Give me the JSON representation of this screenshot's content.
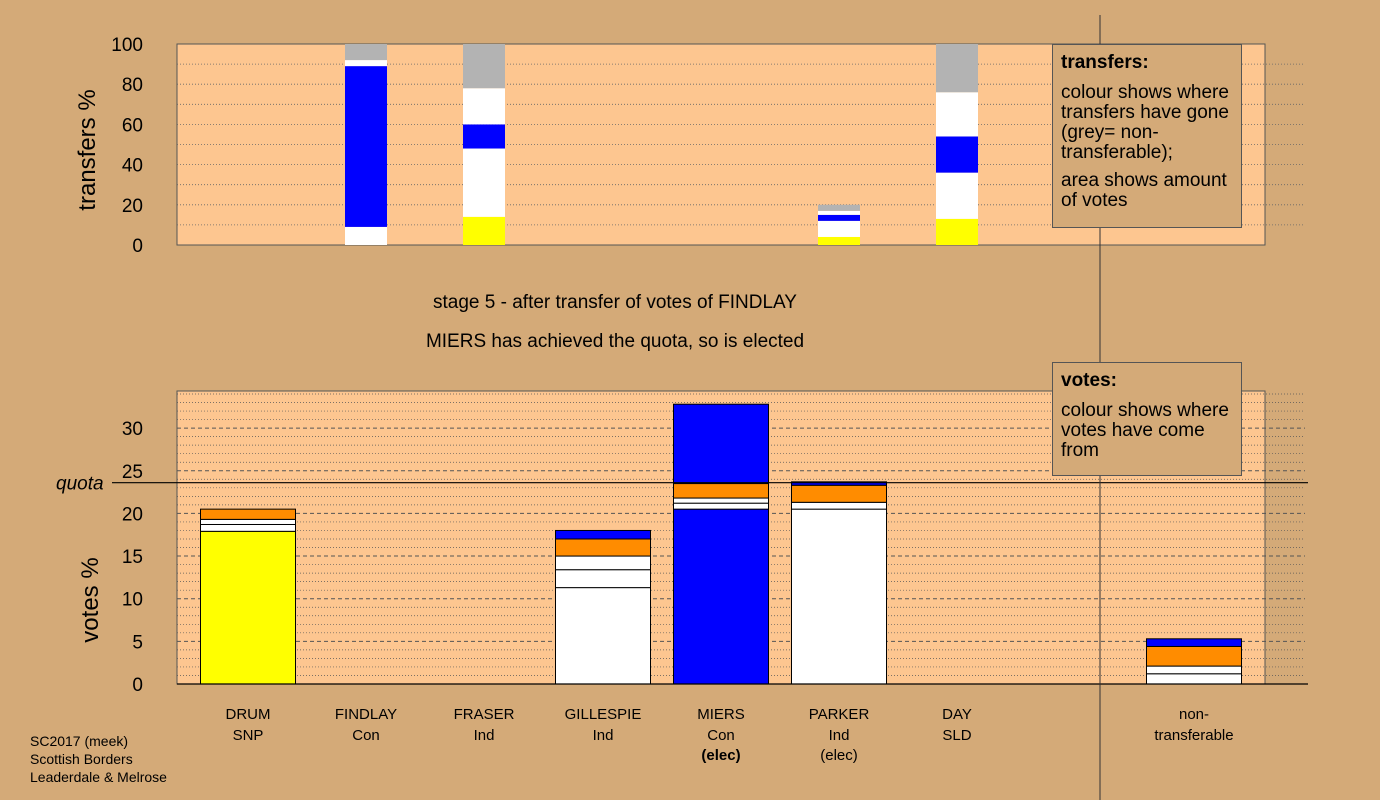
{
  "colors": {
    "background": "#d4aa78",
    "plot_bg": "#fdc690",
    "yellow": "#ffff00",
    "blue": "#0000ff",
    "orange": "#ff8c00",
    "white": "#ffffff",
    "grey": "#b3b3b3"
  },
  "stage_title": "stage 5 - after transfer of votes of FINDLAY",
  "stage_subtitle": "MIERS has achieved the quota, so is elected",
  "transfers_note": {
    "title": "transfers:",
    "line1": "colour shows where transfers have gone (grey= non-transferable);",
    "line2": "area shows amount of votes"
  },
  "votes_note": {
    "title": "votes:",
    "line1": "colour shows where votes have come from"
  },
  "footer": [
    "SC2017 (meek)",
    "Scottish Borders",
    "Leaderdale & Melrose"
  ],
  "chart_data": [
    {
      "type": "bar",
      "name": "transfers",
      "ylabel": "transfers %",
      "ylim": [
        0,
        100
      ],
      "yticks": [
        0,
        20,
        40,
        60,
        80,
        100
      ],
      "categories": [
        "DRUM",
        "FINDLAY",
        "FRASER",
        "GILLESPIE",
        "MIERS",
        "PARKER",
        "DAY"
      ],
      "stacks": [
        [],
        [
          {
            "color": "white",
            "value": 9
          },
          {
            "color": "blue",
            "value": 80
          },
          {
            "color": "white",
            "value": 3
          },
          {
            "color": "grey",
            "value": 8
          }
        ],
        [
          {
            "color": "yellow",
            "value": 14
          },
          {
            "color": "white",
            "value": 34
          },
          {
            "color": "blue",
            "value": 12
          },
          {
            "color": "white",
            "value": 18
          },
          {
            "color": "grey",
            "value": 22
          }
        ],
        [],
        [],
        [
          {
            "color": "yellow",
            "value": 4
          },
          {
            "color": "white",
            "value": 8
          },
          {
            "color": "blue",
            "value": 3
          },
          {
            "color": "white",
            "value": 2
          },
          {
            "color": "grey",
            "value": 3
          }
        ],
        [
          {
            "color": "yellow",
            "value": 13
          },
          {
            "color": "white",
            "value": 23
          },
          {
            "color": "blue",
            "value": 18
          },
          {
            "color": "white",
            "value": 22
          },
          {
            "color": "grey",
            "value": 24
          }
        ]
      ]
    },
    {
      "type": "bar",
      "name": "votes",
      "ylabel": "votes %",
      "ylim": [
        0,
        35
      ],
      "yticks": [
        0,
        5,
        10,
        15,
        20,
        25,
        30
      ],
      "quota": 23.6,
      "quota_label": "quota",
      "categories": [
        {
          "name": "DRUM",
          "party": "SNP",
          "status": ""
        },
        {
          "name": "FINDLAY",
          "party": "Con",
          "status": ""
        },
        {
          "name": "FRASER",
          "party": "Ind",
          "status": ""
        },
        {
          "name": "GILLESPIE",
          "party": "Ind",
          "status": ""
        },
        {
          "name": "MIERS",
          "party": "Con",
          "status": "(elec)"
        },
        {
          "name": "PARKER",
          "party": "Ind",
          "status": "(elec)"
        },
        {
          "name": "DAY",
          "party": "SLD",
          "status": ""
        },
        {
          "name": "non-",
          "party": "transferable",
          "status": ""
        }
      ],
      "stacks": [
        [
          {
            "color": "yellow",
            "value": 17.9
          },
          {
            "color": "white",
            "value": 0.8
          },
          {
            "color": "white",
            "value": 0.6
          },
          {
            "color": "orange",
            "value": 1.2
          }
        ],
        [],
        [],
        [
          {
            "color": "white",
            "value": 11.3
          },
          {
            "color": "white",
            "value": 2.1
          },
          {
            "color": "white",
            "value": 1.6
          },
          {
            "color": "orange",
            "value": 2.0
          },
          {
            "color": "blue",
            "value": 1.0
          }
        ],
        [
          {
            "color": "blue",
            "value": 20.5
          },
          {
            "color": "white",
            "value": 0.7
          },
          {
            "color": "white",
            "value": 0.6
          },
          {
            "color": "orange",
            "value": 1.7
          },
          {
            "color": "blue",
            "value": 9.3
          }
        ],
        [
          {
            "color": "white",
            "value": 20.5
          },
          {
            "color": "white",
            "value": 0.8
          },
          {
            "color": "orange",
            "value": 2.0
          },
          {
            "color": "blue",
            "value": 0.4
          }
        ],
        [],
        [
          {
            "color": "white",
            "value": 1.2
          },
          {
            "color": "white",
            "value": 0.9
          },
          {
            "color": "orange",
            "value": 2.3
          },
          {
            "color": "blue",
            "value": 0.9
          }
        ]
      ]
    }
  ]
}
